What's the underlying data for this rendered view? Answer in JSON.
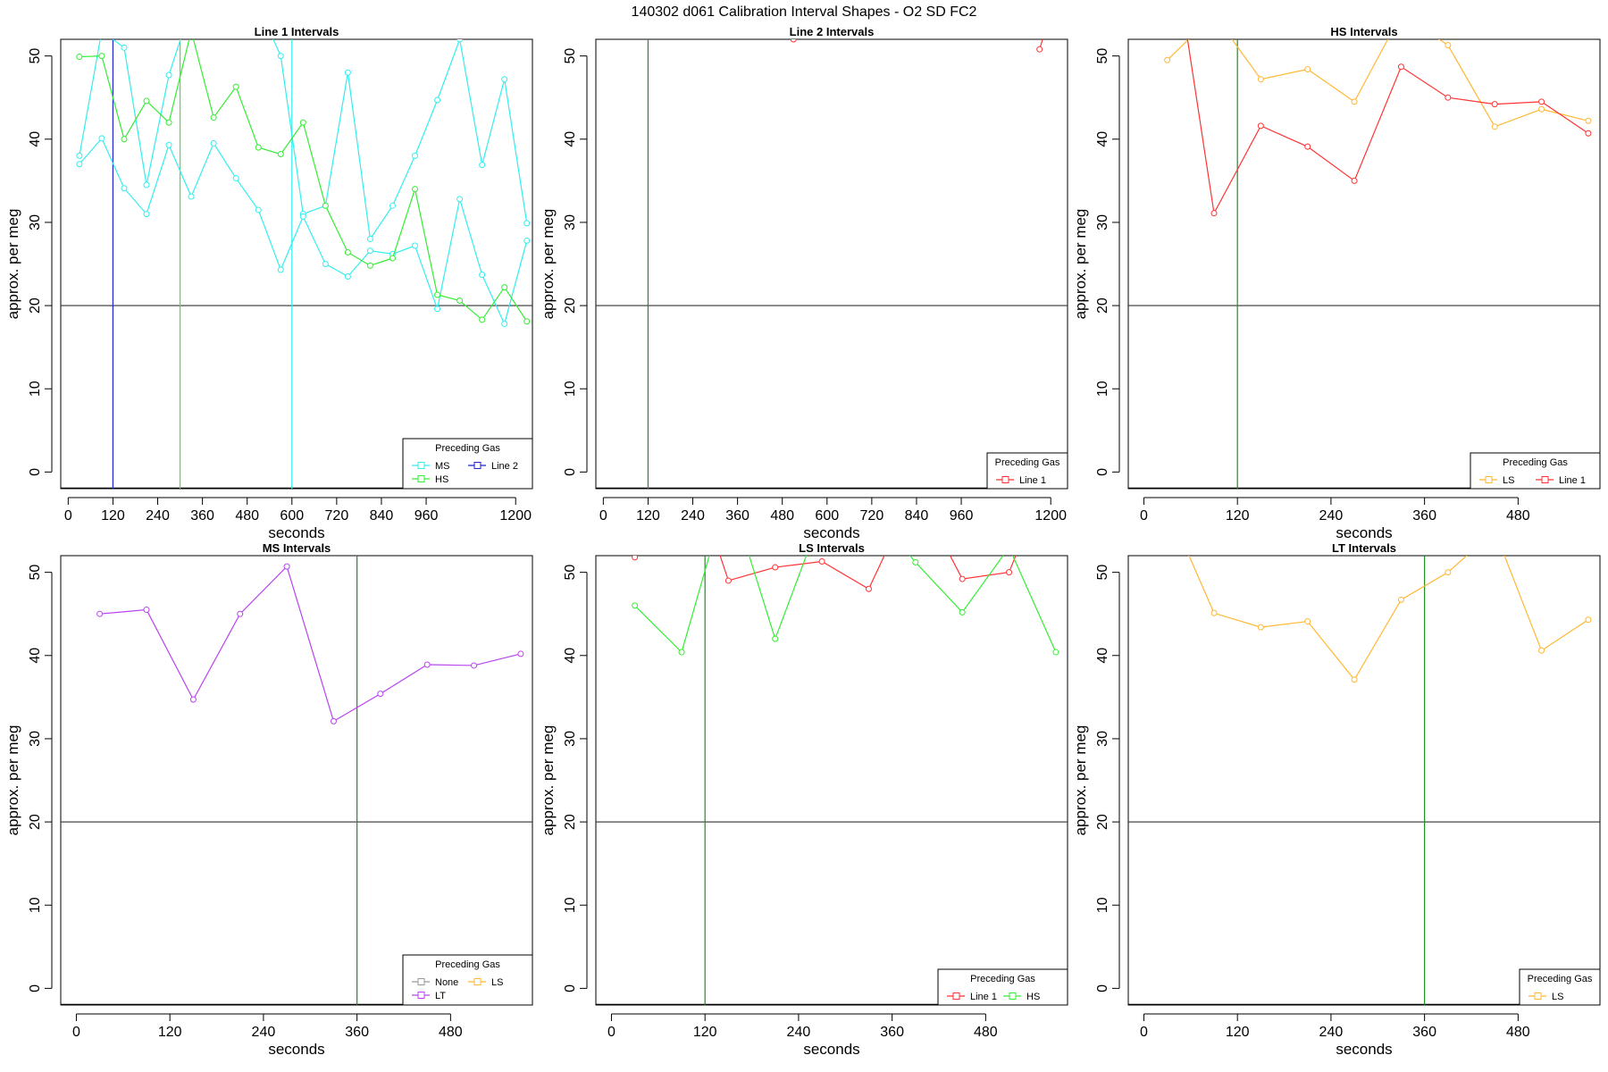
{
  "figure": {
    "title": "140302   d061   Calibration Interval Shapes - O2 SD FC2"
  },
  "colors": {
    "Line 1": "#ff3333",
    "Line 2": "#2222cc",
    "HS": "#33ee33",
    "MS": "#33eeee",
    "LS": "#ffb833",
    "LT": "#b844f0",
    "None": "#999999",
    "vline": "#228b22",
    "ref": "#333333"
  },
  "chart_data": [
    {
      "type": "line",
      "title": "Line 1 Intervals",
      "xlabel": "seconds",
      "ylabel": "approx. per meg",
      "xticks": [
        0,
        120,
        240,
        360,
        480,
        600,
        720,
        840,
        960,
        1200
      ],
      "yticks": [
        0,
        10,
        20,
        30,
        40,
        50
      ],
      "xlim": [
        -20,
        1245
      ],
      "ylim": [
        -2,
        52
      ],
      "hline": 20,
      "vlines": [
        {
          "x": 120,
          "color": "Line 2"
        },
        {
          "x": 300,
          "color": "HS"
        },
        {
          "x": 600,
          "color": "MS"
        }
      ],
      "legend": {
        "title": "Preceding Gas",
        "entries": [
          "MS",
          "HS",
          "Line 2"
        ]
      },
      "series": [
        {
          "color": "MS",
          "x": [
            30,
            90,
            150,
            210,
            270,
            330,
            390,
            450,
            510,
            570,
            630,
            690,
            750,
            810,
            870,
            930,
            990,
            1050,
            1110,
            1170,
            1230
          ],
          "y": [
            38,
            53,
            51,
            34.5,
            47.7,
            56,
            56,
            56,
            56,
            50,
            31,
            32,
            48,
            28,
            32,
            38,
            44.7,
            52,
            36.9,
            47.2,
            29.9
          ]
        },
        {
          "color": "MS",
          "x": [
            30,
            90,
            150,
            210,
            270,
            330,
            390,
            450,
            510,
            570,
            630,
            690,
            750,
            810,
            870,
            930,
            990,
            1050,
            1110,
            1170,
            1230
          ],
          "y": [
            37,
            40.1,
            34.1,
            31,
            39.3,
            33.1,
            39.5,
            35.3,
            31.5,
            24.3,
            30.7,
            25,
            23.5,
            26.6,
            26.2,
            27.2,
            19.6,
            32.8,
            23.7,
            17.8,
            27.8
          ]
        },
        {
          "color": "HS",
          "x": [
            30,
            90,
            150,
            210,
            270,
            330,
            390,
            450,
            510,
            570,
            630,
            690,
            750,
            810,
            870,
            930,
            990,
            1050,
            1110,
            1170,
            1230
          ],
          "y": [
            49.9,
            50,
            40,
            44.6,
            42,
            53,
            42.6,
            46.3,
            39,
            38.2,
            42,
            32,
            26.4,
            24.8,
            25.7,
            34,
            21.3,
            20.6,
            18.3,
            22.2,
            18.1
          ]
        }
      ]
    },
    {
      "type": "line",
      "title": "Line 2 Intervals",
      "xlabel": "seconds",
      "ylabel": "approx. per meg",
      "xticks": [
        0,
        120,
        240,
        360,
        480,
        600,
        720,
        840,
        960,
        1200
      ],
      "yticks": [
        0,
        10,
        20,
        30,
        40,
        50
      ],
      "xlim": [
        -20,
        1245
      ],
      "ylim": [
        -2,
        52
      ],
      "hline": 20,
      "vlines": [
        {
          "x": 120,
          "color": "vline"
        }
      ],
      "legend": {
        "title": "Preceding Gas",
        "entries": [
          "Line 1"
        ]
      },
      "series": [
        {
          "color": "Line 1",
          "x": [
            510
          ],
          "y": [
            52
          ]
        },
        {
          "color": "Line 1",
          "x": [
            1170,
            1185
          ],
          "y": [
            50.8,
            53
          ]
        }
      ]
    },
    {
      "type": "line",
      "title": "HS Intervals",
      "xlabel": "seconds",
      "ylabel": "approx. per meg",
      "xticks": [
        0,
        120,
        240,
        360,
        480
      ],
      "yticks": [
        0,
        10,
        20,
        30,
        40,
        50
      ],
      "xlim": [
        -20,
        585
      ],
      "ylim": [
        -2,
        52
      ],
      "hline": 20,
      "vlines": [
        {
          "x": 120,
          "color": "vline"
        }
      ],
      "legend": {
        "title": "Preceding Gas",
        "entries": [
          "LS",
          "Line 1"
        ]
      },
      "series": [
        {
          "color": "LS",
          "x": [
            30,
            90,
            150,
            210,
            270,
            330,
            390,
            450,
            510,
            570
          ],
          "y": [
            49.5,
            55,
            47.2,
            48.4,
            44.5,
            55,
            51.3,
            41.5,
            43.6,
            42.2
          ]
        },
        {
          "color": "Line 1",
          "x": [
            30,
            90,
            150,
            210,
            270,
            330,
            390,
            450,
            510,
            570
          ],
          "y": [
            68,
            31.1,
            41.6,
            39.1,
            35,
            48.7,
            45,
            44.2,
            44.5,
            40.7
          ]
        }
      ]
    },
    {
      "type": "line",
      "title": "MS Intervals",
      "xlabel": "seconds",
      "ylabel": "approx. per meg",
      "xticks": [
        0,
        120,
        240,
        360,
        480
      ],
      "yticks": [
        0,
        10,
        20,
        30,
        40,
        50
      ],
      "xlim": [
        -20,
        585
      ],
      "ylim": [
        -2,
        52
      ],
      "hline": 20,
      "vlines": [
        {
          "x": 360,
          "color": "vline"
        }
      ],
      "legend": {
        "title": "Preceding Gas",
        "entries": [
          "None",
          "LT",
          "LS"
        ]
      },
      "series": [
        {
          "color": "LT",
          "x": [
            30,
            90,
            150,
            210,
            270,
            330,
            390,
            450,
            510,
            570
          ],
          "y": [
            45,
            45.5,
            34.7,
            45,
            50.7,
            32.1,
            35.4,
            38.9,
            38.8,
            40.2
          ]
        }
      ]
    },
    {
      "type": "line",
      "title": "LS Intervals",
      "xlabel": "seconds",
      "ylabel": "approx. per meg",
      "xticks": [
        0,
        120,
        240,
        360,
        480
      ],
      "yticks": [
        0,
        10,
        20,
        30,
        40,
        50
      ],
      "xlim": [
        -20,
        585
      ],
      "ylim": [
        -2,
        52
      ],
      "hline": 20,
      "vlines": [
        {
          "x": 120,
          "color": "vline"
        }
      ],
      "legend": {
        "title": "Preceding Gas",
        "entries": [
          "Line 1",
          "HS"
        ]
      },
      "series": [
        {
          "color": "Line 1",
          "x": [
            30,
            90,
            150,
            210,
            270,
            330,
            390,
            450,
            510,
            570
          ],
          "y": [
            51.8,
            66,
            49,
            50.6,
            51.3,
            48,
            60,
            49.2,
            50,
            64
          ]
        },
        {
          "color": "HS",
          "x": [
            30,
            90,
            150,
            210,
            270,
            330,
            390,
            450,
            510,
            570
          ],
          "y": [
            46,
            40.4,
            60,
            42,
            57,
            58,
            51.2,
            45.2,
            53,
            40.4
          ]
        }
      ]
    },
    {
      "type": "line",
      "title": "LT Intervals",
      "xlabel": "seconds",
      "ylabel": "approx. per meg",
      "xticks": [
        0,
        120,
        240,
        360,
        480
      ],
      "yticks": [
        0,
        10,
        20,
        30,
        40,
        50
      ],
      "xlim": [
        -20,
        585
      ],
      "ylim": [
        -2,
        52
      ],
      "hline": 20,
      "vlines": [
        {
          "x": 360,
          "color": "vline"
        }
      ],
      "legend": {
        "title": "Preceding Gas",
        "entries": [
          "LS"
        ]
      },
      "series": [
        {
          "color": "LS",
          "x": [
            30,
            90,
            150,
            210,
            270,
            330,
            390,
            450,
            510,
            570
          ],
          "y": [
            58,
            45.1,
            43.4,
            44.1,
            37.1,
            46.7,
            50,
            55,
            40.6,
            44.3
          ]
        }
      ]
    }
  ]
}
